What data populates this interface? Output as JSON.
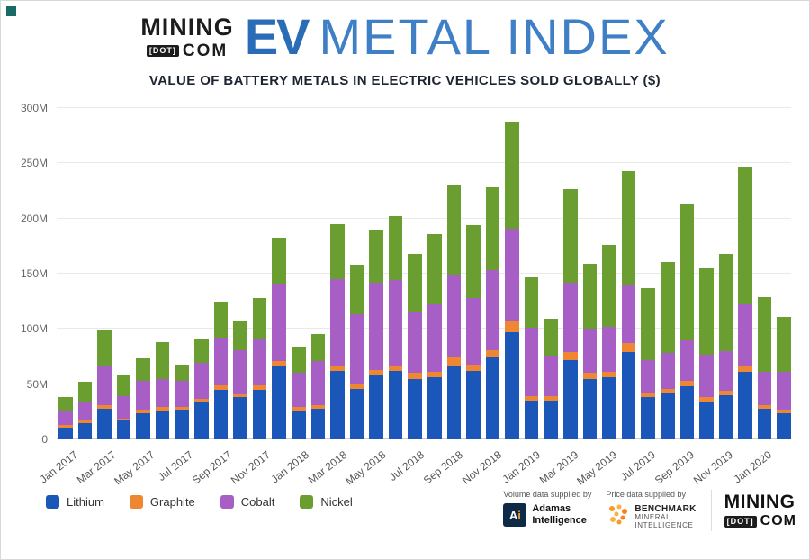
{
  "header": {
    "logo": {
      "mining": "MINING",
      "dot": "[DOT]",
      "com": "COM"
    },
    "ev": "EV",
    "metal_index": "METAL INDEX"
  },
  "subtitle": "VALUE OF BATTERY METALS IN ELECTRIC VEHICLES SOLD GLOBALLY ($)",
  "chart_data": {
    "type": "bar",
    "stacked": true,
    "title": "VALUE OF BATTERY METALS IN ELECTRIC VEHICLES SOLD GLOBALLY ($)",
    "ylabel": "",
    "xlabel": "",
    "unit": "M",
    "ylim": [
      0,
      300
    ],
    "grid": true,
    "legend_position": "bottom-left",
    "categories": [
      "Jan 2017",
      "Feb 2017",
      "Mar 2017",
      "Apr 2017",
      "May 2017",
      "Jun 2017",
      "Jul 2017",
      "Aug 2017",
      "Sep 2017",
      "Oct 2017",
      "Nov 2017",
      "Dec 2017",
      "Jan 2018",
      "Feb 2018",
      "Mar 2018",
      "Apr 2018",
      "May 2018",
      "Jun 2018",
      "Jul 2018",
      "Aug 2018",
      "Sep 2018",
      "Oct 2018",
      "Nov 2018",
      "Dec 2018",
      "Jan 2019",
      "Feb 2019",
      "Mar 2019",
      "Apr 2019",
      "May 2019",
      "Jun 2019",
      "Jul 2019",
      "Aug 2019",
      "Sep 2019",
      "Oct 2019",
      "Nov 2019",
      "Dec 2019",
      "Jan 2020",
      "Feb 2020"
    ],
    "series": [
      {
        "name": "Lithium",
        "color": "#1a57b8",
        "values": [
          11,
          15,
          28,
          17,
          24,
          26,
          27,
          34,
          45,
          38,
          45,
          66,
          26,
          28,
          62,
          46,
          58,
          62,
          55,
          56,
          67,
          62,
          74,
          97,
          35,
          35,
          72,
          55,
          56,
          79,
          38,
          42,
          48,
          34,
          40,
          61,
          28,
          24
        ]
      },
      {
        "name": "Graphite",
        "color": "#ef8632",
        "values": [
          2,
          2,
          3,
          2,
          3,
          3,
          2,
          3,
          4,
          3,
          4,
          5,
          3,
          3,
          5,
          4,
          5,
          5,
          5,
          5,
          7,
          6,
          7,
          10,
          4,
          4,
          7,
          5,
          5,
          8,
          4,
          4,
          5,
          4,
          4,
          6,
          3,
          3
        ]
      },
      {
        "name": "Cobalt",
        "color": "#a75fc5",
        "values": [
          12,
          17,
          36,
          20,
          26,
          26,
          24,
          32,
          43,
          40,
          42,
          70,
          31,
          40,
          78,
          63,
          79,
          77,
          55,
          61,
          75,
          60,
          72,
          84,
          62,
          37,
          63,
          40,
          41,
          53,
          30,
          32,
          37,
          39,
          36,
          55,
          30,
          34
        ]
      },
      {
        "name": "Nickel",
        "color": "#6b9e31",
        "values": [
          13,
          18,
          32,
          19,
          20,
          33,
          15,
          22,
          33,
          26,
          37,
          42,
          24,
          24,
          50,
          45,
          47,
          58,
          53,
          64,
          81,
          66,
          75,
          96,
          46,
          33,
          85,
          59,
          74,
          103,
          65,
          83,
          123,
          78,
          88,
          124,
          68,
          50
        ]
      }
    ],
    "yticks": [
      {
        "value": 0,
        "label": "0"
      },
      {
        "value": 50,
        "label": "50M"
      },
      {
        "value": 100,
        "label": "100M"
      },
      {
        "value": 150,
        "label": "150M"
      },
      {
        "value": 200,
        "label": "200M"
      },
      {
        "value": 250,
        "label": "250M"
      },
      {
        "value": 300,
        "label": "300M"
      }
    ],
    "xticks": [
      {
        "index": 0,
        "label": "Jan 2017"
      },
      {
        "index": 2,
        "label": "Mar 2017"
      },
      {
        "index": 4,
        "label": "May 2017"
      },
      {
        "index": 6,
        "label": "Jul 2017"
      },
      {
        "index": 8,
        "label": "Sep 2017"
      },
      {
        "index": 10,
        "label": "Nov 2017"
      },
      {
        "index": 12,
        "label": "Jan 2018"
      },
      {
        "index": 14,
        "label": "Mar 2018"
      },
      {
        "index": 16,
        "label": "May 2018"
      },
      {
        "index": 18,
        "label": "Jul 2018"
      },
      {
        "index": 20,
        "label": "Sep 2018"
      },
      {
        "index": 22,
        "label": "Nov 2018"
      },
      {
        "index": 24,
        "label": "Jan 2019"
      },
      {
        "index": 26,
        "label": "Mar 2019"
      },
      {
        "index": 28,
        "label": "May 2019"
      },
      {
        "index": 30,
        "label": "Jul 2019"
      },
      {
        "index": 32,
        "label": "Sep 2019"
      },
      {
        "index": 34,
        "label": "Nov 2019"
      },
      {
        "index": 36,
        "label": "Jan 2020"
      }
    ]
  },
  "footer": {
    "volume_caption": "Volume data supplied by",
    "price_caption": "Price data supplied by",
    "adamas": {
      "icon_a": "A",
      "icon_i": "i",
      "line1": "Adamas",
      "line2": "Intelligence"
    },
    "benchmark": {
      "line1": "BENCHMARK",
      "line2": "MINERAL",
      "line3": "INTELLIGENCE"
    },
    "mining_logo": {
      "mining": "MINING",
      "dot": "[DOT]",
      "com": "COM"
    }
  }
}
